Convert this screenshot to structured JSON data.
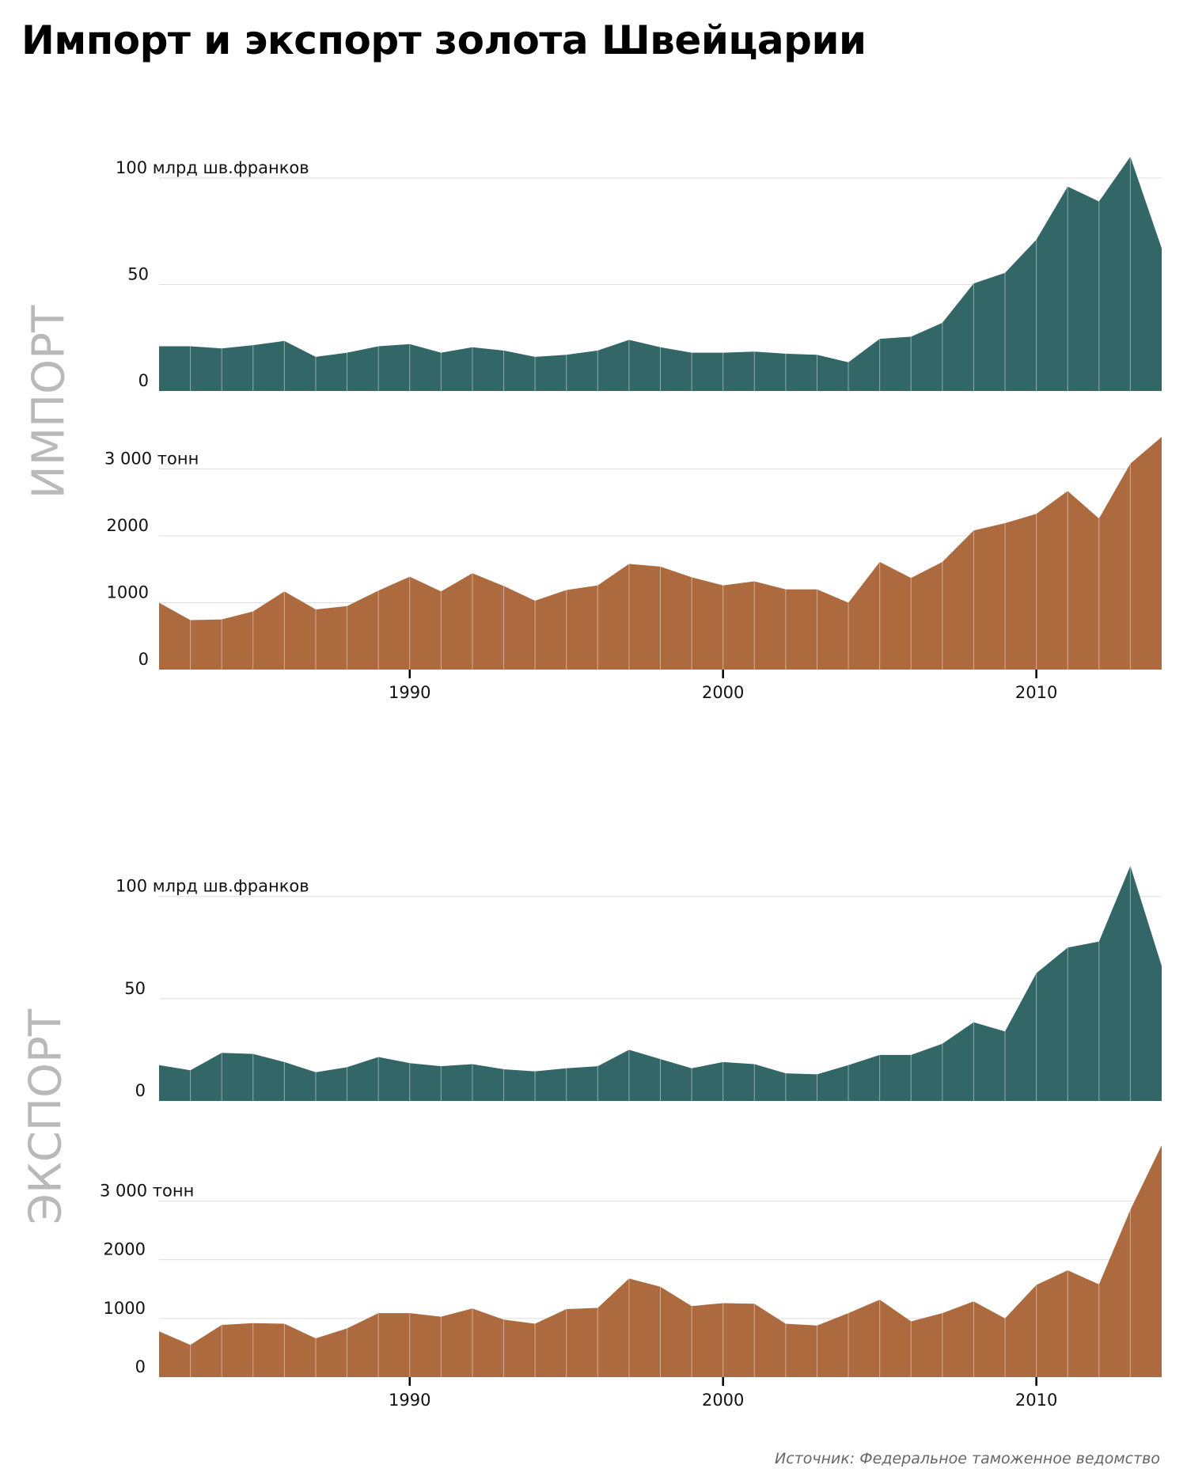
{
  "title": "Импорт и экспорт золота Швейцарии",
  "source": "Источник: Федеральное таможенное ведомство",
  "colors": {
    "value": "#336666",
    "tonnes": "#ad6a3f",
    "grid": "#dddddd",
    "side_label": "#b9b9b9"
  },
  "chart_data": [
    {
      "type": "area",
      "group": "ИМПОРТ",
      "measure": "value",
      "unit_label": "100 млрд шв.франков",
      "x": [
        1982,
        1983,
        1984,
        1985,
        1986,
        1987,
        1988,
        1989,
        1990,
        1991,
        1992,
        1993,
        1994,
        1995,
        1996,
        1997,
        1998,
        1999,
        2000,
        2001,
        2002,
        2003,
        2004,
        2005,
        2006,
        2007,
        2008,
        2009,
        2010,
        2011,
        2012,
        2013,
        2014
      ],
      "values": [
        21,
        21,
        20,
        21.5,
        23.5,
        16,
        18,
        21,
        22,
        18,
        20.5,
        19,
        16,
        17,
        19,
        24,
        20.5,
        18,
        18,
        18.5,
        17.5,
        17,
        13.5,
        24.5,
        25.5,
        32,
        50.5,
        55.5,
        71,
        96,
        89,
        110,
        67
      ],
      "ylim": [
        0,
        110
      ],
      "yticks": [
        0,
        50,
        100
      ],
      "ytick_labels": [
        "0",
        "50",
        "100 млрд шв.франков"
      ]
    },
    {
      "type": "area",
      "group": "ИМПОРТ",
      "measure": "tonnes",
      "unit_label": "3 000 тонн",
      "x": [
        1982,
        1983,
        1984,
        1985,
        1986,
        1987,
        1988,
        1989,
        1990,
        1991,
        1992,
        1993,
        1994,
        1995,
        1996,
        1997,
        1998,
        1999,
        2000,
        2001,
        2002,
        2003,
        2004,
        2005,
        2006,
        2007,
        2008,
        2009,
        2010,
        2011,
        2012,
        2013,
        2014
      ],
      "values": [
        1000,
        740,
        750,
        870,
        1170,
        900,
        950,
        1180,
        1390,
        1170,
        1440,
        1250,
        1030,
        1190,
        1260,
        1580,
        1540,
        1380,
        1260,
        1320,
        1200,
        1200,
        1000,
        1610,
        1370,
        1610,
        2080,
        2190,
        2330,
        2670,
        2260,
        3080,
        3480
      ],
      "ylim": [
        0,
        3480
      ],
      "yticks": [
        0,
        1000,
        2000,
        3000
      ],
      "ytick_labels": [
        "0",
        "1000",
        "2000",
        "3 000 тонн"
      ]
    },
    {
      "type": "area",
      "group": "ЭКСПОРТ",
      "measure": "value",
      "unit_label": "100 млрд шв.франков",
      "x": [
        1982,
        1983,
        1984,
        1985,
        1986,
        1987,
        1988,
        1989,
        1990,
        1991,
        1992,
        1993,
        1994,
        1995,
        1996,
        1997,
        1998,
        1999,
        2000,
        2001,
        2002,
        2003,
        2004,
        2005,
        2006,
        2007,
        2008,
        2009,
        2010,
        2011,
        2012,
        2013,
        2014
      ],
      "values": [
        17.5,
        15,
        23.5,
        23,
        19,
        14,
        16.5,
        21.5,
        18.5,
        17,
        18,
        15.5,
        14.5,
        16,
        17,
        25,
        20.5,
        16,
        19,
        18,
        13.5,
        13,
        17.5,
        22.5,
        22.5,
        28,
        38.5,
        34,
        62.5,
        75,
        78,
        115,
        66
      ],
      "ylim": [
        0,
        115
      ],
      "yticks": [
        0,
        50,
        100
      ],
      "ytick_labels": [
        "0",
        "50",
        "100 млрд шв.франков"
      ]
    },
    {
      "type": "area",
      "group": "ЭКСПОРТ",
      "measure": "tonnes",
      "unit_label": "3 000 тонн",
      "x": [
        1982,
        1983,
        1984,
        1985,
        1986,
        1987,
        1988,
        1989,
        1990,
        1991,
        1992,
        1993,
        1994,
        1995,
        1996,
        1997,
        1998,
        1999,
        2000,
        2001,
        2002,
        2003,
        2004,
        2005,
        2006,
        2007,
        2008,
        2009,
        2010,
        2011,
        2012,
        2013,
        2014
      ],
      "values": [
        780,
        550,
        890,
        920,
        910,
        660,
        830,
        1090,
        1090,
        1030,
        1170,
        980,
        910,
        1160,
        1180,
        1680,
        1540,
        1210,
        1260,
        1250,
        910,
        880,
        1090,
        1320,
        950,
        1090,
        1290,
        1000,
        1570,
        1820,
        1580,
        2850,
        3950
      ],
      "ylim": [
        0,
        3950
      ],
      "yticks": [
        0,
        1000,
        2000,
        3000
      ],
      "ytick_labels": [
        "0",
        "1000",
        "2000",
        "3 000 тонн"
      ]
    }
  ],
  "x_axis": {
    "ticks": [
      1990,
      2000,
      2010
    ],
    "tick_labels": [
      "1990",
      "2000",
      "2010"
    ]
  }
}
